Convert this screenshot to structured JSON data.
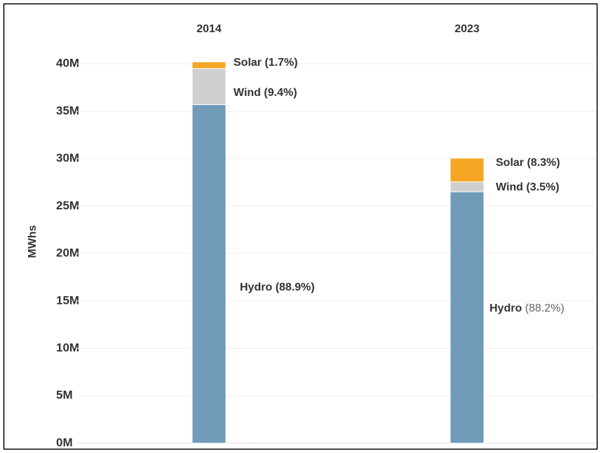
{
  "chart_data": {
    "type": "stacked_bar",
    "categories": [
      "2014",
      "2023"
    ],
    "y_label": "MWhs",
    "ylim": [
      0,
      42000000
    ],
    "yticks": [
      {
        "value": 0,
        "label": "0M"
      },
      {
        "value": 5000000,
        "label": "5M"
      },
      {
        "value": 10000000,
        "label": "10M"
      },
      {
        "value": 15000000,
        "label": "15M"
      },
      {
        "value": 20000000,
        "label": "20M"
      },
      {
        "value": 25000000,
        "label": "25M"
      },
      {
        "value": 30000000,
        "label": "30M"
      },
      {
        "value": 35000000,
        "label": "35M"
      },
      {
        "value": 40000000,
        "label": "40M"
      }
    ],
    "grid": true,
    "series": [
      {
        "name": "Hydro",
        "color": "#6f9ab8",
        "values": [
          35700000,
          26500000
        ],
        "share_labels": [
          "(88.9%)",
          "(88.2%)"
        ]
      },
      {
        "name": "Wind",
        "color": "#cfcfcd",
        "values": [
          3800000,
          1050000
        ],
        "share_labels": [
          "(9.4%)",
          "(3.5%)"
        ]
      },
      {
        "name": "Solar",
        "color": "#f5a623",
        "values": [
          700000,
          2500000
        ],
        "share_labels": [
          "(1.7%)",
          "(8.3%)"
        ]
      }
    ]
  }
}
